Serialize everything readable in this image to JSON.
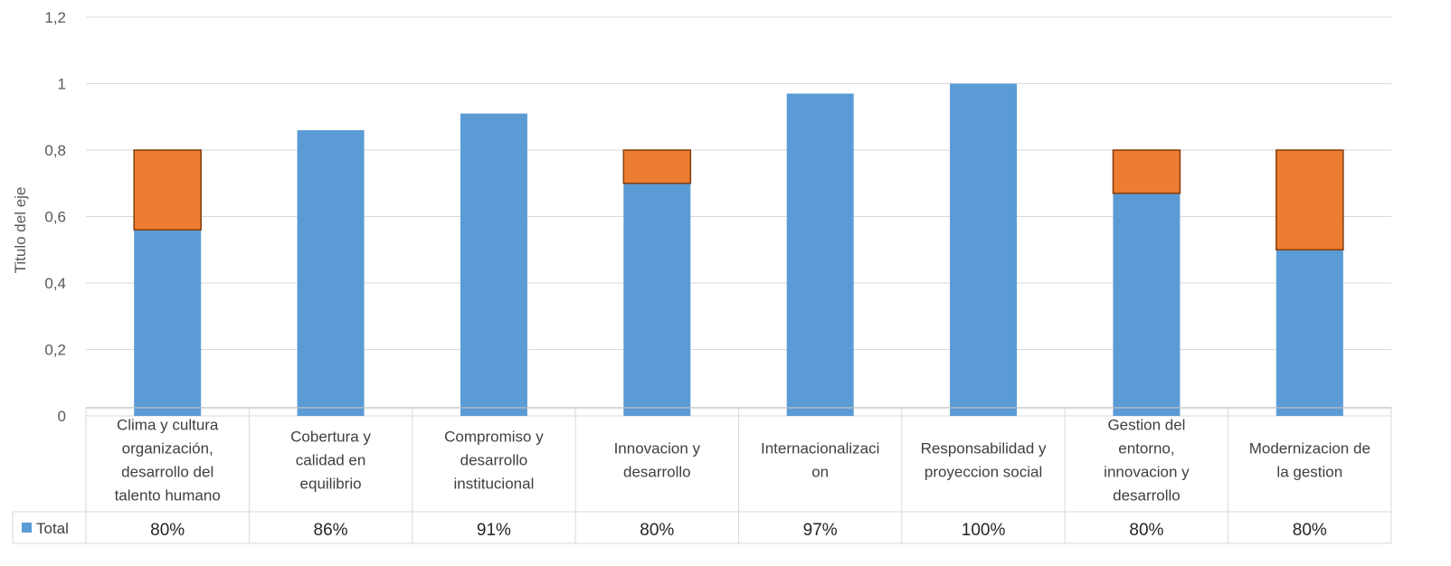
{
  "chart_data": {
    "type": "bar",
    "stacked": true,
    "ylabel": "Titulo del eje",
    "ylim": [
      0,
      1.2
    ],
    "yticks": [
      "0",
      "0,2",
      "0,4",
      "0,6",
      "0,8",
      "1",
      "1,2"
    ],
    "grid": true,
    "categories": [
      [
        "Clima y cultura",
        "organización,",
        "desarrollo del",
        "talento humano"
      ],
      [
        "Cobertura y",
        "calidad en",
        "equilibrio"
      ],
      [
        "Compromiso y",
        "desarrollo",
        "institucional"
      ],
      [
        "Innovacion y",
        "desarrollo"
      ],
      [
        "Internacionalizaci",
        "on"
      ],
      [
        "Responsabilidad y",
        "proyeccion social"
      ],
      [
        "Gestion del",
        "entorno,",
        "innovacion y",
        "desarrollo"
      ],
      [
        "Modernizacion de",
        "la gestion"
      ]
    ],
    "series": [
      {
        "name": "Total",
        "color": "#5B9BD5",
        "values": [
          0.56,
          0.86,
          0.91,
          0.7,
          0.97,
          1.0,
          0.67,
          0.5
        ]
      },
      {
        "color": "#ED7D31",
        "values": [
          0.24,
          0,
          0,
          0.1,
          0,
          0,
          0.13,
          0.3
        ]
      }
    ],
    "data_table": {
      "legend_label": "Total",
      "values": [
        "80%",
        "86%",
        "91%",
        "80%",
        "97%",
        "100%",
        "80%",
        "80%"
      ]
    }
  }
}
